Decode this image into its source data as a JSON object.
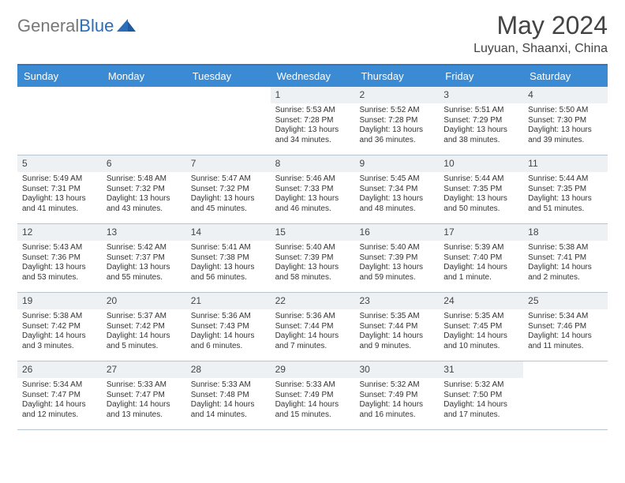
{
  "logo": {
    "part1": "General",
    "part2": "Blue"
  },
  "title": {
    "month": "May 2024",
    "location": "Luyuan, Shaanxi, China"
  },
  "colors": {
    "header_bg": "#3b8bd4",
    "header_border": "#2f76bf",
    "daynum_bg": "#eef1f3",
    "row_border": "#b8c4cf",
    "text": "#333333"
  },
  "day_names": [
    "Sunday",
    "Monday",
    "Tuesday",
    "Wednesday",
    "Thursday",
    "Friday",
    "Saturday"
  ],
  "weeks": [
    [
      {
        "n": "",
        "sr": "",
        "ss": "",
        "dl": ""
      },
      {
        "n": "",
        "sr": "",
        "ss": "",
        "dl": ""
      },
      {
        "n": "",
        "sr": "",
        "ss": "",
        "dl": ""
      },
      {
        "n": "1",
        "sr": "Sunrise: 5:53 AM",
        "ss": "Sunset: 7:28 PM",
        "dl": "Daylight: 13 hours and 34 minutes."
      },
      {
        "n": "2",
        "sr": "Sunrise: 5:52 AM",
        "ss": "Sunset: 7:28 PM",
        "dl": "Daylight: 13 hours and 36 minutes."
      },
      {
        "n": "3",
        "sr": "Sunrise: 5:51 AM",
        "ss": "Sunset: 7:29 PM",
        "dl": "Daylight: 13 hours and 38 minutes."
      },
      {
        "n": "4",
        "sr": "Sunrise: 5:50 AM",
        "ss": "Sunset: 7:30 PM",
        "dl": "Daylight: 13 hours and 39 minutes."
      }
    ],
    [
      {
        "n": "5",
        "sr": "Sunrise: 5:49 AM",
        "ss": "Sunset: 7:31 PM",
        "dl": "Daylight: 13 hours and 41 minutes."
      },
      {
        "n": "6",
        "sr": "Sunrise: 5:48 AM",
        "ss": "Sunset: 7:32 PM",
        "dl": "Daylight: 13 hours and 43 minutes."
      },
      {
        "n": "7",
        "sr": "Sunrise: 5:47 AM",
        "ss": "Sunset: 7:32 PM",
        "dl": "Daylight: 13 hours and 45 minutes."
      },
      {
        "n": "8",
        "sr": "Sunrise: 5:46 AM",
        "ss": "Sunset: 7:33 PM",
        "dl": "Daylight: 13 hours and 46 minutes."
      },
      {
        "n": "9",
        "sr": "Sunrise: 5:45 AM",
        "ss": "Sunset: 7:34 PM",
        "dl": "Daylight: 13 hours and 48 minutes."
      },
      {
        "n": "10",
        "sr": "Sunrise: 5:44 AM",
        "ss": "Sunset: 7:35 PM",
        "dl": "Daylight: 13 hours and 50 minutes."
      },
      {
        "n": "11",
        "sr": "Sunrise: 5:44 AM",
        "ss": "Sunset: 7:35 PM",
        "dl": "Daylight: 13 hours and 51 minutes."
      }
    ],
    [
      {
        "n": "12",
        "sr": "Sunrise: 5:43 AM",
        "ss": "Sunset: 7:36 PM",
        "dl": "Daylight: 13 hours and 53 minutes."
      },
      {
        "n": "13",
        "sr": "Sunrise: 5:42 AM",
        "ss": "Sunset: 7:37 PM",
        "dl": "Daylight: 13 hours and 55 minutes."
      },
      {
        "n": "14",
        "sr": "Sunrise: 5:41 AM",
        "ss": "Sunset: 7:38 PM",
        "dl": "Daylight: 13 hours and 56 minutes."
      },
      {
        "n": "15",
        "sr": "Sunrise: 5:40 AM",
        "ss": "Sunset: 7:39 PM",
        "dl": "Daylight: 13 hours and 58 minutes."
      },
      {
        "n": "16",
        "sr": "Sunrise: 5:40 AM",
        "ss": "Sunset: 7:39 PM",
        "dl": "Daylight: 13 hours and 59 minutes."
      },
      {
        "n": "17",
        "sr": "Sunrise: 5:39 AM",
        "ss": "Sunset: 7:40 PM",
        "dl": "Daylight: 14 hours and 1 minute."
      },
      {
        "n": "18",
        "sr": "Sunrise: 5:38 AM",
        "ss": "Sunset: 7:41 PM",
        "dl": "Daylight: 14 hours and 2 minutes."
      }
    ],
    [
      {
        "n": "19",
        "sr": "Sunrise: 5:38 AM",
        "ss": "Sunset: 7:42 PM",
        "dl": "Daylight: 14 hours and 3 minutes."
      },
      {
        "n": "20",
        "sr": "Sunrise: 5:37 AM",
        "ss": "Sunset: 7:42 PM",
        "dl": "Daylight: 14 hours and 5 minutes."
      },
      {
        "n": "21",
        "sr": "Sunrise: 5:36 AM",
        "ss": "Sunset: 7:43 PM",
        "dl": "Daylight: 14 hours and 6 minutes."
      },
      {
        "n": "22",
        "sr": "Sunrise: 5:36 AM",
        "ss": "Sunset: 7:44 PM",
        "dl": "Daylight: 14 hours and 7 minutes."
      },
      {
        "n": "23",
        "sr": "Sunrise: 5:35 AM",
        "ss": "Sunset: 7:44 PM",
        "dl": "Daylight: 14 hours and 9 minutes."
      },
      {
        "n": "24",
        "sr": "Sunrise: 5:35 AM",
        "ss": "Sunset: 7:45 PM",
        "dl": "Daylight: 14 hours and 10 minutes."
      },
      {
        "n": "25",
        "sr": "Sunrise: 5:34 AM",
        "ss": "Sunset: 7:46 PM",
        "dl": "Daylight: 14 hours and 11 minutes."
      }
    ],
    [
      {
        "n": "26",
        "sr": "Sunrise: 5:34 AM",
        "ss": "Sunset: 7:47 PM",
        "dl": "Daylight: 14 hours and 12 minutes."
      },
      {
        "n": "27",
        "sr": "Sunrise: 5:33 AM",
        "ss": "Sunset: 7:47 PM",
        "dl": "Daylight: 14 hours and 13 minutes."
      },
      {
        "n": "28",
        "sr": "Sunrise: 5:33 AM",
        "ss": "Sunset: 7:48 PM",
        "dl": "Daylight: 14 hours and 14 minutes."
      },
      {
        "n": "29",
        "sr": "Sunrise: 5:33 AM",
        "ss": "Sunset: 7:49 PM",
        "dl": "Daylight: 14 hours and 15 minutes."
      },
      {
        "n": "30",
        "sr": "Sunrise: 5:32 AM",
        "ss": "Sunset: 7:49 PM",
        "dl": "Daylight: 14 hours and 16 minutes."
      },
      {
        "n": "31",
        "sr": "Sunrise: 5:32 AM",
        "ss": "Sunset: 7:50 PM",
        "dl": "Daylight: 14 hours and 17 minutes."
      },
      {
        "n": "",
        "sr": "",
        "ss": "",
        "dl": ""
      }
    ]
  ]
}
